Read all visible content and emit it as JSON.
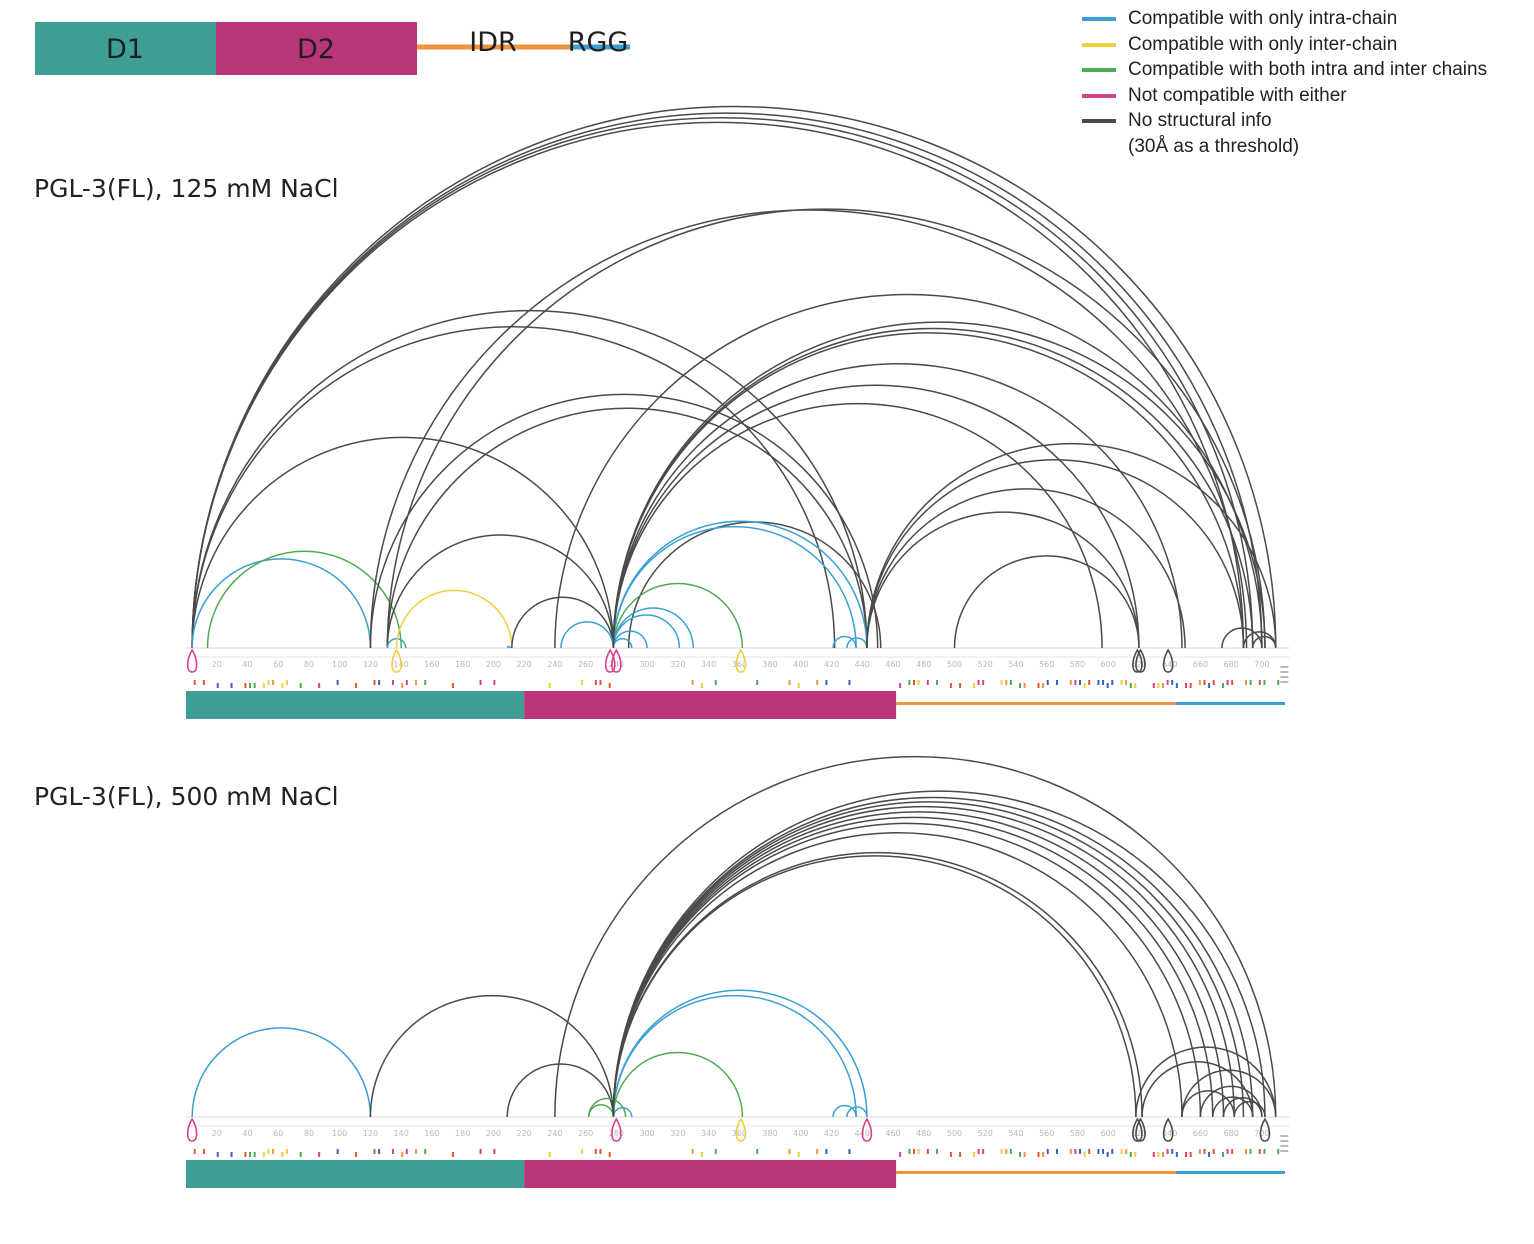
{
  "domains": [
    {
      "label": "D1",
      "color": "#3f9e94",
      "start": 1,
      "end": 220
    },
    {
      "label": "D2",
      "color": "#b83678",
      "start": 220,
      "end": 462
    },
    {
      "label": "IDR",
      "color": "#ef9440",
      "start": 462,
      "end": 644
    },
    {
      "label": "RGG",
      "color": "#3aa0d4",
      "start": 644,
      "end": 715
    }
  ],
  "legend": {
    "items": [
      {
        "label": "Compatible with only intra-chain",
        "color": "#3aa0d4"
      },
      {
        "label": "Compatible with only inter-chain",
        "color": "#f0cf3a"
      },
      {
        "label": "Compatible with both intra and inter chains",
        "color": "#4fab4f"
      },
      {
        "label": "Not compatible with either",
        "color": "#d6408a"
      },
      {
        "label": "No structural info",
        "color": "#4a4a4a"
      }
    ],
    "note": "(30Å as a threshold)"
  },
  "axis": {
    "ticks": [
      20,
      40,
      60,
      80,
      100,
      120,
      140,
      160,
      180,
      200,
      220,
      240,
      260,
      280,
      300,
      320,
      340,
      360,
      380,
      400,
      420,
      440,
      460,
      480,
      500,
      520,
      540,
      560,
      580,
      600,
      620,
      640,
      660,
      680,
      700
    ]
  },
  "panels": [
    {
      "title": "PGL-3(FL), 125 mM NaCl",
      "crosslinks": [
        {
          "a": 4,
          "b": 709,
          "type": "none"
        },
        {
          "a": 4,
          "b": 700,
          "type": "none"
        },
        {
          "a": 4,
          "b": 694,
          "type": "none"
        },
        {
          "a": 4,
          "b": 688,
          "type": "none"
        },
        {
          "a": 4,
          "b": 443,
          "type": "none"
        },
        {
          "a": 4,
          "b": 422,
          "type": "none"
        },
        {
          "a": 4,
          "b": 278,
          "type": "none"
        },
        {
          "a": 4,
          "b": 120,
          "type": "intra"
        },
        {
          "a": 14,
          "b": 140,
          "type": "both"
        },
        {
          "a": 120,
          "b": 450,
          "type": "none"
        },
        {
          "a": 120,
          "b": 690,
          "type": "none"
        },
        {
          "a": 131,
          "b": 702,
          "type": "none"
        },
        {
          "a": 131,
          "b": 443,
          "type": "none"
        },
        {
          "a": 131,
          "b": 278,
          "type": "none"
        },
        {
          "a": 131,
          "b": 143,
          "type": "intra"
        },
        {
          "a": 137,
          "b": 212,
          "type": "inter"
        },
        {
          "a": 212,
          "b": 278,
          "type": "none"
        },
        {
          "a": 209,
          "b": 211,
          "type": "intra"
        },
        {
          "a": 240,
          "b": 700,
          "type": "none"
        },
        {
          "a": 244,
          "b": 278,
          "type": "intra"
        },
        {
          "a": 288,
          "b": 452,
          "type": "none"
        },
        {
          "a": 278,
          "b": 436,
          "type": "intra"
        },
        {
          "a": 278,
          "b": 443,
          "type": "intra"
        },
        {
          "a": 278,
          "b": 362,
          "type": "both"
        },
        {
          "a": 278,
          "b": 330,
          "type": "intra"
        },
        {
          "a": 278,
          "b": 321,
          "type": "intra"
        },
        {
          "a": 278,
          "b": 300,
          "type": "intra"
        },
        {
          "a": 278,
          "b": 290,
          "type": "intra"
        },
        {
          "a": 278,
          "b": 702,
          "type": "none"
        },
        {
          "a": 278,
          "b": 694,
          "type": "none"
        },
        {
          "a": 278,
          "b": 688,
          "type": "none"
        },
        {
          "a": 278,
          "b": 620,
          "type": "none"
        },
        {
          "a": 278,
          "b": 596,
          "type": "none"
        },
        {
          "a": 278,
          "b": 648,
          "type": "none"
        },
        {
          "a": 421,
          "b": 436,
          "type": "intra"
        },
        {
          "a": 430,
          "b": 443,
          "type": "intra"
        },
        {
          "a": 443,
          "b": 709,
          "type": "none"
        },
        {
          "a": 443,
          "b": 688,
          "type": "none"
        },
        {
          "a": 443,
          "b": 650,
          "type": "none"
        },
        {
          "a": 443,
          "b": 620,
          "type": "none"
        },
        {
          "a": 500,
          "b": 620,
          "type": "none"
        },
        {
          "a": 674,
          "b": 700,
          "type": "none"
        },
        {
          "a": 688,
          "b": 709,
          "type": "none"
        },
        {
          "a": 694,
          "b": 709,
          "type": "none"
        }
      ],
      "markers": [
        {
          "pos": 4,
          "type": "notcomp"
        },
        {
          "pos": 137,
          "type": "inter"
        },
        {
          "pos": 276,
          "type": "notcomp"
        },
        {
          "pos": 280,
          "type": "notcomp"
        },
        {
          "pos": 361,
          "type": "inter"
        },
        {
          "pos": 619,
          "type": "none"
        },
        {
          "pos": 621,
          "type": "none"
        },
        {
          "pos": 639,
          "type": "none"
        }
      ]
    },
    {
      "title": "PGL-3(FL), 500 mM NaCl",
      "crosslinks": [
        {
          "a": 4,
          "b": 120,
          "type": "intra"
        },
        {
          "a": 120,
          "b": 278,
          "type": "none"
        },
        {
          "a": 209,
          "b": 278,
          "type": "none"
        },
        {
          "a": 240,
          "b": 709,
          "type": "none"
        },
        {
          "a": 262,
          "b": 278,
          "type": "both"
        },
        {
          "a": 262,
          "b": 286,
          "type": "both"
        },
        {
          "a": 278,
          "b": 290,
          "type": "intra"
        },
        {
          "a": 278,
          "b": 362,
          "type": "both"
        },
        {
          "a": 278,
          "b": 436,
          "type": "intra"
        },
        {
          "a": 278,
          "b": 443,
          "type": "intra"
        },
        {
          "a": 278,
          "b": 702,
          "type": "none"
        },
        {
          "a": 278,
          "b": 694,
          "type": "none"
        },
        {
          "a": 278,
          "b": 688,
          "type": "none"
        },
        {
          "a": 278,
          "b": 682,
          "type": "none"
        },
        {
          "a": 278,
          "b": 675,
          "type": "none"
        },
        {
          "a": 278,
          "b": 668,
          "type": "none"
        },
        {
          "a": 278,
          "b": 660,
          "type": "none"
        },
        {
          "a": 278,
          "b": 648,
          "type": "none"
        },
        {
          "a": 278,
          "b": 622,
          "type": "none"
        },
        {
          "a": 278,
          "b": 618,
          "type": "none"
        },
        {
          "a": 421,
          "b": 436,
          "type": "intra"
        },
        {
          "a": 430,
          "b": 443,
          "type": "intra"
        },
        {
          "a": 618,
          "b": 709,
          "type": "none"
        },
        {
          "a": 622,
          "b": 694,
          "type": "none"
        },
        {
          "a": 648,
          "b": 709,
          "type": "none"
        },
        {
          "a": 648,
          "b": 682,
          "type": "none"
        },
        {
          "a": 660,
          "b": 700,
          "type": "none"
        },
        {
          "a": 668,
          "b": 694,
          "type": "none"
        },
        {
          "a": 675,
          "b": 700,
          "type": "none"
        },
        {
          "a": 682,
          "b": 702,
          "type": "none"
        }
      ],
      "markers": [
        {
          "pos": 4,
          "type": "notcomp"
        },
        {
          "pos": 280,
          "type": "notcomp"
        },
        {
          "pos": 361,
          "type": "inter"
        },
        {
          "pos": 443,
          "type": "notcomp"
        },
        {
          "pos": 619,
          "type": "none"
        },
        {
          "pos": 621,
          "type": "none"
        },
        {
          "pos": 639,
          "type": "none"
        },
        {
          "pos": 702,
          "type": "none"
        }
      ]
    }
  ],
  "colors": {
    "intra": "#3aa0d4",
    "inter": "#f0cf3a",
    "both": "#4fab4f",
    "notcomp": "#d6408a",
    "none": "#4a4a4a"
  }
}
